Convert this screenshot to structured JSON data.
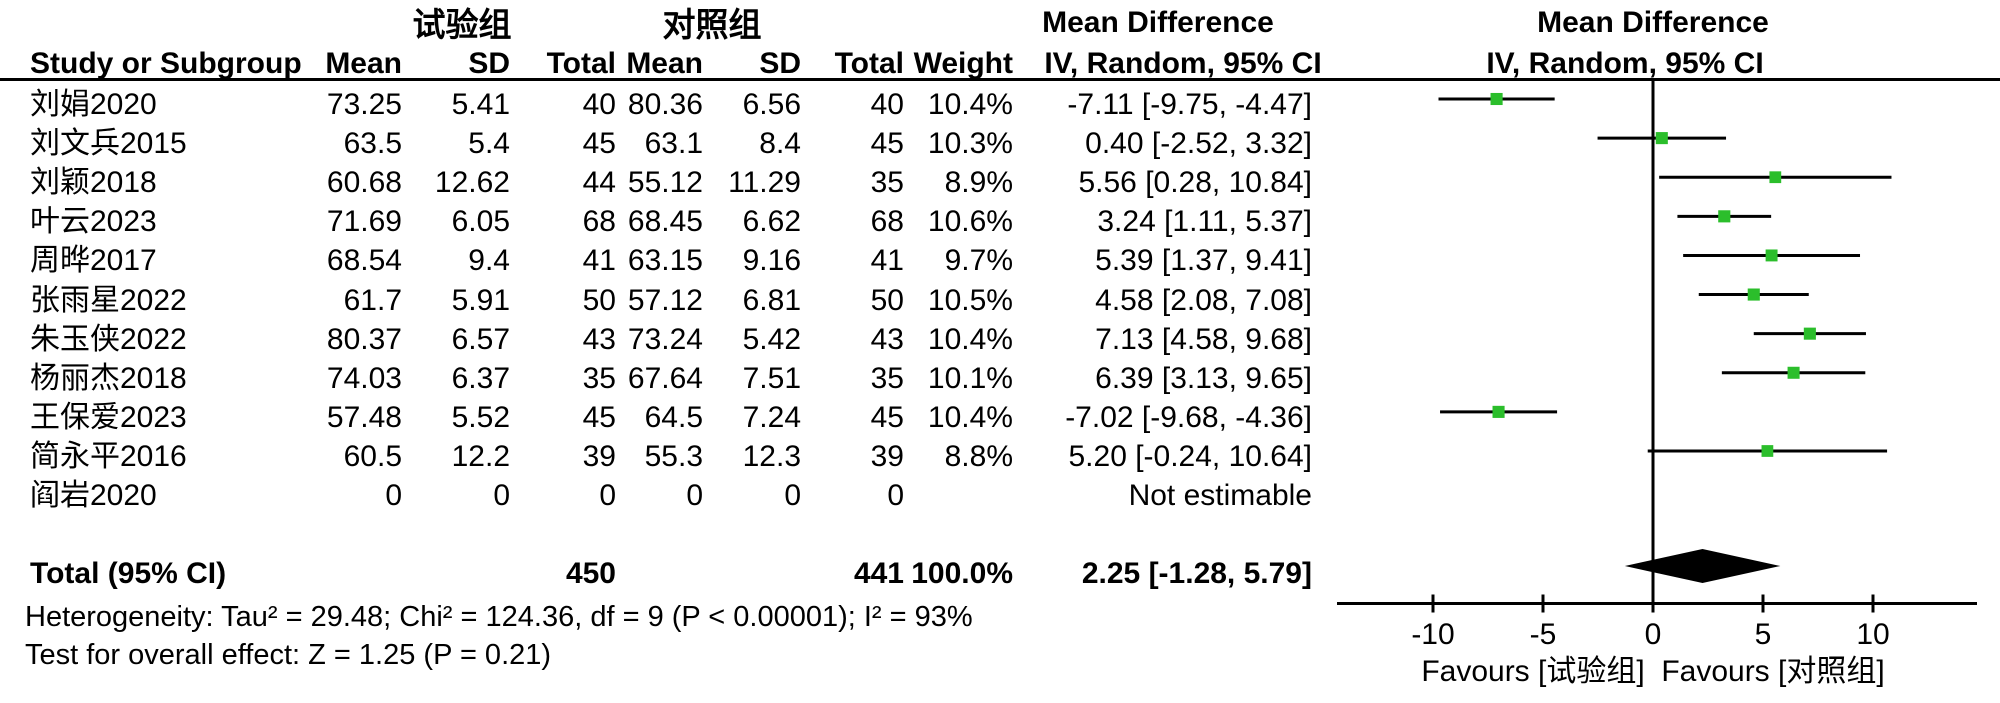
{
  "colors": {
    "marker_green": "#2BBE2B",
    "line_black": "#000000",
    "text_black": "#000000",
    "background": "#FFFFFF"
  },
  "table": {
    "group_headers": {
      "experimental": "试验组",
      "control": "对照组"
    },
    "columns": {
      "study": "Study or Subgroup",
      "mean": "Mean",
      "sd": "SD",
      "total": "Total",
      "weight": "Weight"
    },
    "effect_header": {
      "line1": "Mean Difference",
      "line2": "IV, Random, 95% CI"
    },
    "rows": [
      {
        "study": "刘娟2020",
        "mean1": "73.25",
        "sd1": "5.41",
        "total1": "40",
        "mean2": "80.36",
        "sd2": "6.56",
        "total2": "40",
        "weight": "10.4%",
        "ci": "-7.11 [-9.75, -4.47]"
      },
      {
        "study": "刘文兵2015",
        "mean1": "63.5",
        "sd1": "5.4",
        "total1": "45",
        "mean2": "63.1",
        "sd2": "8.4",
        "total2": "45",
        "weight": "10.3%",
        "ci": "0.40 [-2.52, 3.32]"
      },
      {
        "study": "刘颖2018",
        "mean1": "60.68",
        "sd1": "12.62",
        "total1": "44",
        "mean2": "55.12",
        "sd2": "11.29",
        "total2": "35",
        "weight": "8.9%",
        "ci": "5.56 [0.28, 10.84]"
      },
      {
        "study": "叶云2023",
        "mean1": "71.69",
        "sd1": "6.05",
        "total1": "68",
        "mean2": "68.45",
        "sd2": "6.62",
        "total2": "68",
        "weight": "10.6%",
        "ci": "3.24 [1.11, 5.37]"
      },
      {
        "study": "周晔2017",
        "mean1": "68.54",
        "sd1": "9.4",
        "total1": "41",
        "mean2": "63.15",
        "sd2": "9.16",
        "total2": "41",
        "weight": "9.7%",
        "ci": "5.39 [1.37, 9.41]"
      },
      {
        "study": "张雨星2022",
        "mean1": "61.7",
        "sd1": "5.91",
        "total1": "50",
        "mean2": "57.12",
        "sd2": "6.81",
        "total2": "50",
        "weight": "10.5%",
        "ci": "4.58 [2.08, 7.08]"
      },
      {
        "study": "朱玉侠2022",
        "mean1": "80.37",
        "sd1": "6.57",
        "total1": "43",
        "mean2": "73.24",
        "sd2": "5.42",
        "total2": "43",
        "weight": "10.4%",
        "ci": "7.13 [4.58, 9.68]"
      },
      {
        "study": "杨丽杰2018",
        "mean1": "74.03",
        "sd1": "6.37",
        "total1": "35",
        "mean2": "67.64",
        "sd2": "7.51",
        "total2": "35",
        "weight": "10.1%",
        "ci": "6.39 [3.13, 9.65]"
      },
      {
        "study": "王保爱2023",
        "mean1": "57.48",
        "sd1": "5.52",
        "total1": "45",
        "mean2": "64.5",
        "sd2": "7.24",
        "total2": "45",
        "weight": "10.4%",
        "ci": "-7.02 [-9.68, -4.36]"
      },
      {
        "study": "简永平2016",
        "mean1": "60.5",
        "sd1": "12.2",
        "total1": "39",
        "mean2": "55.3",
        "sd2": "12.3",
        "total2": "39",
        "weight": "8.8%",
        "ci": "5.20 [-0.24, 10.64]"
      },
      {
        "study": "阎岩2020",
        "mean1": "0",
        "sd1": "0",
        "total1": "0",
        "mean2": "0",
        "sd2": "0",
        "total2": "0",
        "weight": "",
        "ci": "Not estimable"
      }
    ],
    "total_row": {
      "label": "Total (95% CI)",
      "total1": "450",
      "total2": "441",
      "weight": "100.0%",
      "ci": "2.25 [-1.28, 5.79]"
    },
    "footer": {
      "heterogeneity": "Heterogeneity: Tau² = 29.48; Chi² = 124.36, df = 9 (P < 0.00001); I² = 93%",
      "overall_effect": "Test for overall effect: Z = 1.25 (P = 0.21)"
    }
  },
  "chart_data": {
    "type": "forest",
    "effect_measure": "Mean Difference, IV, Random, 95% CI",
    "x_axis": {
      "ticks": [
        -10,
        -5,
        0,
        5,
        10
      ],
      "range": [
        -14.4,
        14.7
      ],
      "zero_line": true
    },
    "favours_left": "Favours [试验组]",
    "favours_right": "Favours [对照组]",
    "studies": [
      {
        "label": "刘娟2020",
        "mean": -7.11,
        "ci_low": -9.75,
        "ci_high": -4.47,
        "weight": 10.4
      },
      {
        "label": "刘文兵2015",
        "mean": 0.4,
        "ci_low": -2.52,
        "ci_high": 3.32,
        "weight": 10.3
      },
      {
        "label": "刘颖2018",
        "mean": 5.56,
        "ci_low": 0.28,
        "ci_high": 10.84,
        "weight": 8.9
      },
      {
        "label": "叶云2023",
        "mean": 3.24,
        "ci_low": 1.11,
        "ci_high": 5.37,
        "weight": 10.6
      },
      {
        "label": "周晔2017",
        "mean": 5.39,
        "ci_low": 1.37,
        "ci_high": 9.41,
        "weight": 9.7
      },
      {
        "label": "张雨星2022",
        "mean": 4.58,
        "ci_low": 2.08,
        "ci_high": 7.08,
        "weight": 10.5
      },
      {
        "label": "朱玉侠2022",
        "mean": 7.13,
        "ci_low": 4.58,
        "ci_high": 9.68,
        "weight": 10.4
      },
      {
        "label": "杨丽杰2018",
        "mean": 6.39,
        "ci_low": 3.13,
        "ci_high": 9.65,
        "weight": 10.1
      },
      {
        "label": "王保爱2023",
        "mean": -7.02,
        "ci_low": -9.68,
        "ci_high": -4.36,
        "weight": 10.4
      },
      {
        "label": "简永平2016",
        "mean": 5.2,
        "ci_low": -0.24,
        "ci_high": 10.64,
        "weight": 8.8
      },
      {
        "label": "阎岩2020",
        "not_estimable": true
      }
    ],
    "overall": {
      "label": "Total (95% CI)",
      "mean": 2.25,
      "ci_low": -1.28,
      "ci_high": 5.79
    }
  }
}
